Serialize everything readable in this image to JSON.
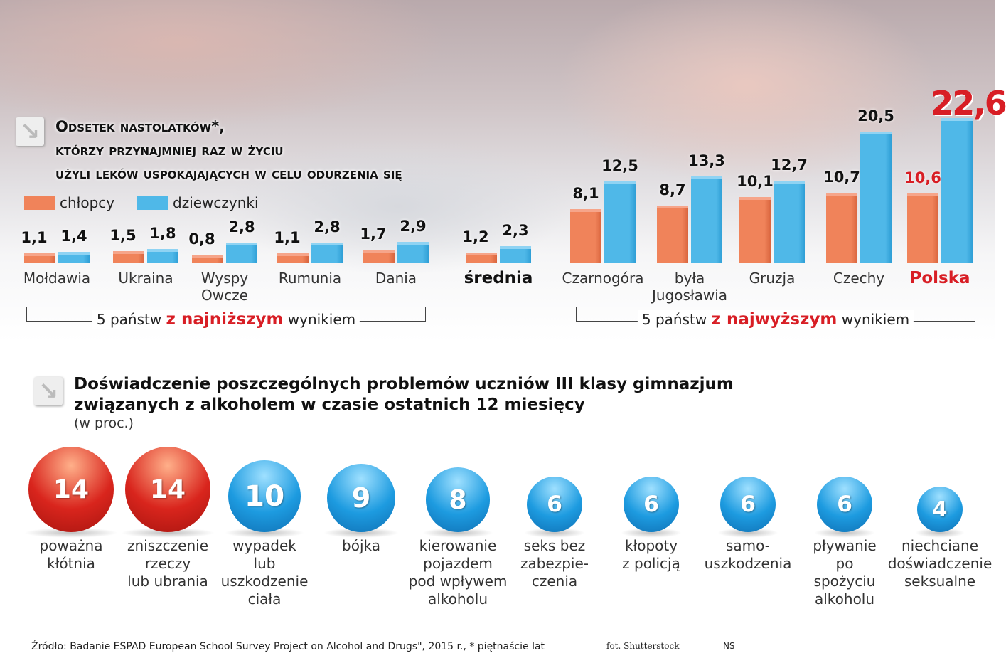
{
  "chart_data": [
    {
      "type": "bar",
      "title": "Odsetek nastolatków*, którzy przynajmniej raz w życiu użyli leków uspokajających w celu odurzenia się",
      "title_lines": [
        "Odsetek nastolatków*,",
        "którzy przynajmniej raz w życiu",
        "użyli leków uspokajających w celu odurzenia się"
      ],
      "categories": [
        "Mołdawia",
        "Ukraina",
        "Wyspy\nOwcze",
        "Rumunia",
        "Dania",
        "średnia",
        "Czarnogóra",
        "była\nJugosławia",
        "Gruzja",
        "Czechy",
        "Polska"
      ],
      "series": [
        {
          "name": "chłopcy",
          "color": "#f0835a",
          "values": [
            1.1,
            1.5,
            0.8,
            1.1,
            1.7,
            1.2,
            8.1,
            8.7,
            10.1,
            10.7,
            10.6
          ],
          "labels": [
            "1,1",
            "1,5",
            "0,8",
            "1,1",
            "1,7",
            "1,2",
            "8,1",
            "8,7",
            "10,1",
            "10,7",
            "10,6"
          ]
        },
        {
          "name": "dziewczynki",
          "color": "#4fb8e8",
          "values": [
            1.4,
            1.8,
            2.8,
            2.8,
            2.9,
            2.3,
            12.5,
            13.3,
            12.7,
            20.5,
            22.6
          ],
          "labels": [
            "1,4",
            "1,8",
            "2,8",
            "2,8",
            "2,9",
            "2,3",
            "12,5",
            "13,3",
            "12,7",
            "20,5",
            "22,6"
          ]
        }
      ],
      "groups": [
        {
          "pre": "5 państw ",
          "em": "z najniższym",
          "post": " wynikiem"
        },
        {
          "pre": "5 państw ",
          "em": "z najwyższym",
          "post": " wynikiem"
        }
      ],
      "highlight_color": "#d81e25",
      "ylim": [
        0,
        23
      ]
    },
    {
      "type": "bubble",
      "title": "Doświadczenie poszczególnych problemów uczniów III klasy gimnazjum",
      "title2": "związanych z alkoholem w czasie ostatnich 12 miesięcy",
      "unit": "(w proc.)",
      "categories": [
        "poważna\nkłótnia",
        "zniszczenie\nrzeczy\nlub ubrania",
        "wypadek\nlub\nuszkodzenie\nciała",
        "bójka",
        "kierowanie\npojazdem\npod wpływem\nalkoholu",
        "seks bez\nzabezpie-\nczenia",
        "kłopoty\nz policją",
        "samo-\nuszkodzenia",
        "pływanie\npo\nspożyciu\nalkoholu",
        "niechciane\ndoświadczenie\nseksualne"
      ],
      "values": [
        14,
        14,
        10,
        9,
        8,
        6,
        6,
        6,
        6,
        4
      ],
      "colors": {
        "high": "#d9251d",
        "normal": "#1d9be0"
      }
    }
  ],
  "footer": {
    "source": "Źródło: Badanie ESPAD European School Survey Project on Alcohol and Drugs\", 2015 r., * piętnaście lat",
    "photo": "fot. Shutterstock",
    "author": "NS"
  }
}
